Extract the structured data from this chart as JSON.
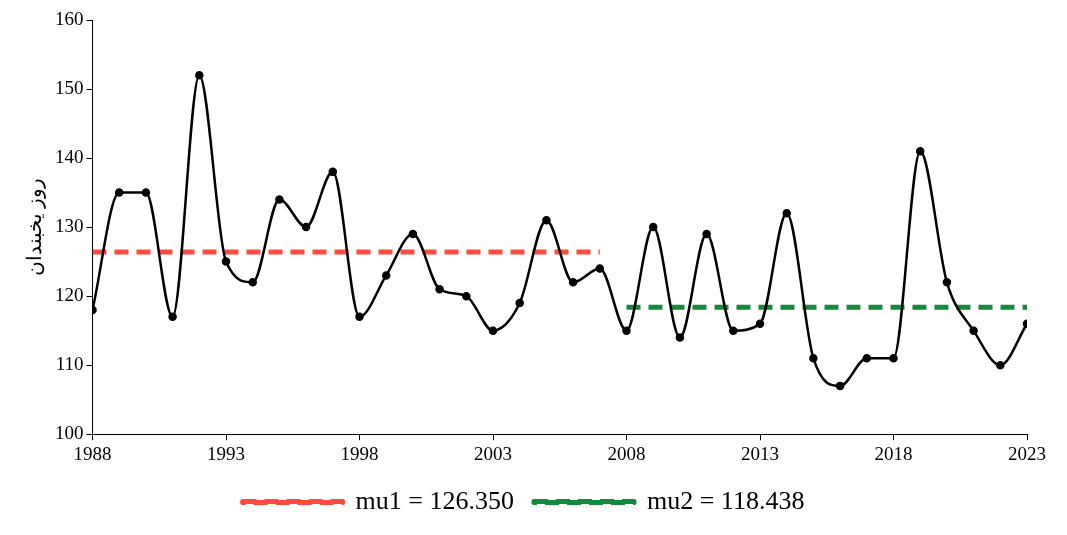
{
  "chart_data": {
    "type": "line",
    "ylabel": "روز یخبندان",
    "xlim": [
      1988,
      2023
    ],
    "xticks": [
      1988,
      1993,
      1998,
      2003,
      2008,
      2013,
      2018,
      2023
    ],
    "ylim": [
      100,
      160
    ],
    "yticks": [
      100,
      110,
      120,
      130,
      140,
      150,
      160
    ],
    "grid": false,
    "legend": "bottom",
    "marker": "circle",
    "series": [
      {
        "color": "#000000",
        "line_style": "solid",
        "x": [
          1988,
          1989,
          1990,
          1991,
          1992,
          1993,
          1994,
          1995,
          1996,
          1997,
          1998,
          1999,
          2000,
          2001,
          2002,
          2003,
          2004,
          2005,
          2006,
          2007,
          2008,
          2009,
          2010,
          2011,
          2012,
          2013,
          2014,
          2015,
          2016,
          2017,
          2018,
          2019,
          2020,
          2021,
          2022,
          2023
        ],
        "values": [
          118,
          135,
          135,
          117,
          152,
          125,
          122,
          134,
          130,
          138,
          117,
          123,
          129,
          121,
          120,
          115,
          119,
          131,
          122,
          124,
          115,
          130,
          114,
          129,
          115,
          116,
          132,
          111,
          107,
          111,
          111,
          141,
          122,
          115,
          110,
          116
        ]
      },
      {
        "name": "mu1 = 126.350",
        "color": "#ff4b3e",
        "marker": "none",
        "line_style": "dashed",
        "x": [
          1988,
          2007
        ],
        "values": [
          126.4,
          126.4
        ]
      },
      {
        "name": "mu2 = 118.438",
        "color": "#128a3a",
        "marker": "none",
        "line_style": "dashed",
        "x": [
          2008,
          2023
        ],
        "values": [
          118.4,
          118.4
        ]
      }
    ]
  }
}
